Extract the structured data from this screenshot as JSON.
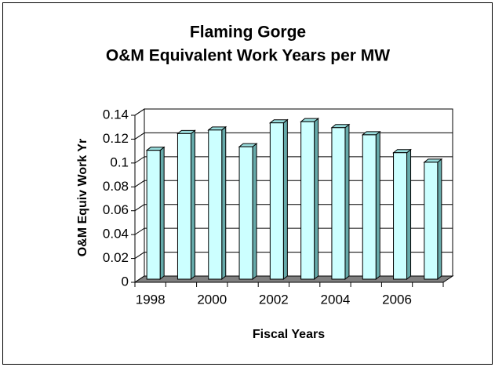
{
  "chart_data": {
    "type": "bar3d",
    "title": [
      "Flaming Gorge",
      "O&M Equivalent Work Years per MW"
    ],
    "x_label": "Fiscal Years",
    "y_label": "O&M Equiv Work Yr",
    "categories": [
      "1998",
      null,
      "2000",
      null,
      "2002",
      null,
      "2004",
      null,
      "2006",
      null
    ],
    "values": [
      0.108,
      0.122,
      0.125,
      0.111,
      0.131,
      0.132,
      0.127,
      0.121,
      0.106,
      0.098
    ],
    "color": "#ccffff",
    "ylim": [
      0,
      0.14
    ],
    "yticks": [
      0,
      0.02,
      0.04,
      0.06,
      0.08,
      0.1,
      0.12,
      0.14
    ],
    "grid": true
  }
}
